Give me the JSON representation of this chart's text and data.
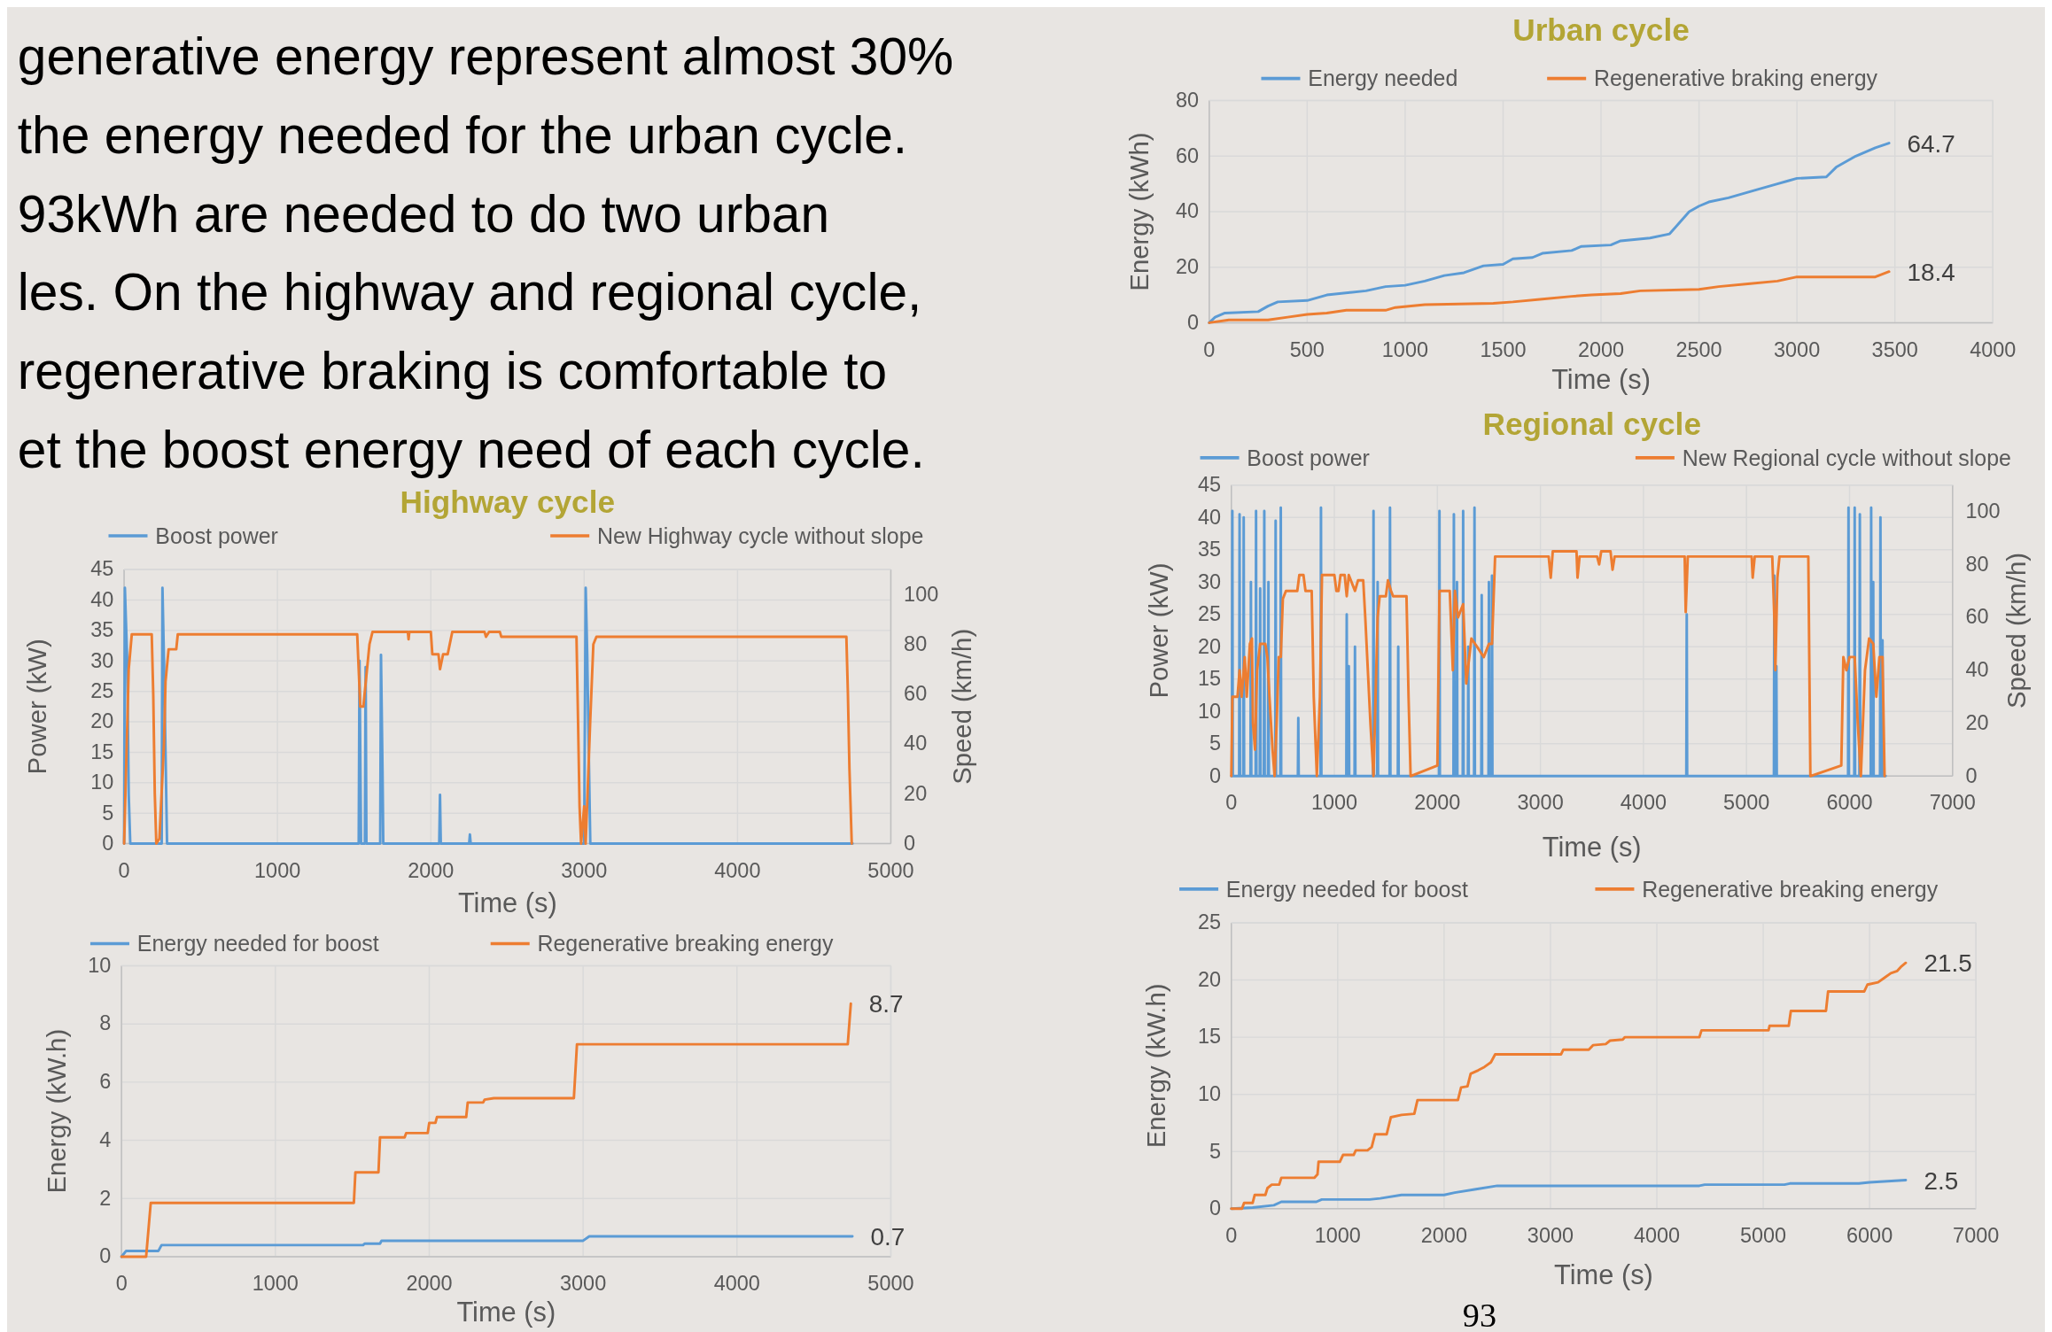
{
  "chart_data": [
    {
      "type": "other",
      "annotations": [
        "generative energy represent almost 30%",
        "the energy needed for the urban cycle.",
        "93kWh are needed to do two urban",
        "les. On the highway and regional cycle,",
        "regenerative braking is comfortable to",
        "et the boost energy need of each cycle."
      ]
    },
    {
      "type": "line",
      "title": "Urban cycle",
      "xlabel": "Time (s)",
      "ylabel": "Energy (kWh)",
      "xlim": [
        0,
        4000
      ],
      "xticks": [
        0,
        500,
        1000,
        1500,
        2000,
        2500,
        3000,
        3500,
        4000
      ],
      "ylim": [
        0,
        80
      ],
      "yticks": [
        0,
        20,
        40,
        60,
        80
      ],
      "grid": true,
      "legend": "top",
      "series": [
        {
          "name": "Energy needed",
          "color": "#5b9bd5",
          "x": [
            0,
            30,
            80,
            250,
            300,
            350,
            500,
            600,
            800,
            900,
            1000,
            1100,
            1200,
            1300,
            1400,
            1500,
            1550,
            1650,
            1700,
            1850,
            1900,
            2050,
            2100,
            2250,
            2350,
            2400,
            2450,
            2500,
            2550,
            2650,
            2800,
            2900,
            2950,
            3000,
            3150,
            3200,
            3300,
            3400,
            3470
          ],
          "values": [
            0,
            2,
            3.5,
            4,
            6,
            7.5,
            8,
            10,
            11.5,
            13,
            13.5,
            15,
            17,
            18,
            20.5,
            21,
            23,
            23.5,
            25,
            26,
            27.5,
            28,
            29.5,
            30.5,
            32,
            36,
            40,
            42,
            43.5,
            45,
            48,
            50,
            51,
            52,
            52.5,
            56,
            60,
            63,
            64.7
          ]
        },
        {
          "name": "Regenerative braking energy",
          "color": "#ed7d31",
          "x": [
            0,
            100,
            300,
            400,
            500,
            600,
            700,
            900,
            950,
            1100,
            1450,
            1550,
            1700,
            1850,
            1950,
            2100,
            2200,
            2500,
            2600,
            2750,
            2900,
            3000,
            3400,
            3470
          ],
          "values": [
            0,
            1,
            1,
            2,
            3,
            3.5,
            4.5,
            4.5,
            5.5,
            6.5,
            7,
            7.5,
            8.5,
            9.5,
            10,
            10.5,
            11.5,
            12,
            13,
            14,
            15,
            16.5,
            16.5,
            18.4
          ]
        }
      ],
      "annotations": [
        {
          "text": "64.7",
          "x": 3470,
          "y": 64.7
        },
        {
          "text": "18.4",
          "x": 3470,
          "y": 18.4
        }
      ]
    },
    {
      "type": "line",
      "title": "Highway cycle",
      "xlabel": "Time (s)",
      "ylabel": "Power (kW)",
      "y2label": "Speed (km/h)",
      "xlim": [
        0,
        5000
      ],
      "xticks": [
        0,
        1000,
        2000,
        3000,
        4000,
        5000
      ],
      "ylim": [
        0,
        45
      ],
      "yticks": [
        0,
        5,
        10,
        15,
        20,
        25,
        30,
        35,
        40,
        45
      ],
      "y2lim": [
        0,
        110
      ],
      "y2ticks": [
        0,
        20,
        40,
        60,
        80,
        100
      ],
      "grid": true,
      "legend": "top",
      "series": [
        {
          "name": "Boost power",
          "color": "#5b9bd5",
          "x": [
            0,
            5,
            20,
            30,
            40,
            245,
            250,
            260,
            270,
            280,
            1530,
            1535,
            1545,
            1570,
            1575,
            1580,
            1670,
            1675,
            1685,
            1690,
            2055,
            2060,
            2065,
            2250,
            2255,
            2260,
            3000,
            3010,
            3020,
            3030,
            3040,
            4750
          ],
          "values": [
            0,
            42,
            30,
            8,
            0,
            0,
            42,
            30,
            15,
            0,
            0,
            30,
            0,
            0,
            29,
            0,
            0,
            31,
            12,
            0,
            0,
            8,
            0,
            0,
            1.5,
            0,
            0,
            42,
            31,
            15,
            0,
            0
          ]
        },
        {
          "name": "New Highway cycle without slope",
          "color": "#ed7d31",
          "axis": "y2",
          "x": [
            0,
            30,
            50,
            180,
            190,
            200,
            210,
            230,
            260,
            270,
            290,
            340,
            350,
            1520,
            1540,
            1560,
            1600,
            1620,
            1850,
            1855,
            1860,
            2000,
            2010,
            2050,
            2060,
            2080,
            2110,
            2140,
            2350,
            2360,
            2380,
            2450,
            2460,
            2950,
            2960,
            2970,
            2980,
            3000,
            3010,
            3040,
            3060,
            3080,
            4710,
            4720,
            4730,
            4745
          ],
          "values": [
            0,
            70,
            84,
            84,
            60,
            20,
            0,
            2,
            40,
            65,
            78,
            78,
            84,
            84,
            55,
            55,
            80,
            85,
            85,
            82,
            85,
            85,
            76,
            76,
            70,
            76,
            76,
            85,
            85,
            83,
            85,
            85,
            83,
            83,
            50,
            15,
            0,
            15,
            0,
            50,
            80,
            83,
            83,
            60,
            30,
            0
          ]
        }
      ]
    },
    {
      "type": "line",
      "xlabel": "Time (s)",
      "ylabel": "Energy (kW.h)",
      "xlim": [
        0,
        5000
      ],
      "xticks": [
        0,
        1000,
        2000,
        3000,
        4000,
        5000
      ],
      "ylim": [
        0,
        10
      ],
      "yticks": [
        0,
        2,
        4,
        6,
        8,
        10
      ],
      "grid": true,
      "legend": "top",
      "series": [
        {
          "name": "Energy needed for boost",
          "color": "#5b9bd5",
          "x": [
            0,
            30,
            240,
            260,
            1570,
            1580,
            1680,
            1690,
            3000,
            3040,
            4750
          ],
          "values": [
            0,
            0.2,
            0.2,
            0.4,
            0.4,
            0.45,
            0.45,
            0.55,
            0.55,
            0.7,
            0.7
          ]
        },
        {
          "name": "Regenerative breaking energy",
          "color": "#ed7d31",
          "x": [
            0,
            160,
            190,
            1510,
            1520,
            1670,
            1680,
            1840,
            1850,
            1990,
            2000,
            2040,
            2050,
            2240,
            2250,
            2350,
            2360,
            2420,
            2940,
            2960,
            4720,
            4740
          ],
          "values": [
            0,
            0,
            1.85,
            1.85,
            2.9,
            2.9,
            4.1,
            4.1,
            4.25,
            4.25,
            4.6,
            4.6,
            4.8,
            4.8,
            5.3,
            5.3,
            5.4,
            5.45,
            5.45,
            7.3,
            7.3,
            8.7
          ]
        }
      ],
      "annotations": [
        {
          "text": "8.7",
          "x": 4740,
          "y": 8.7
        },
        {
          "text": "0.7",
          "x": 4750,
          "y": 0.7
        }
      ]
    },
    {
      "type": "line",
      "title": "Regional cycle",
      "xlabel": "Time (s)",
      "ylabel": "Power (kW)",
      "y2label": "Speed (km/h)",
      "xlim": [
        0,
        7000
      ],
      "xticks": [
        0,
        1000,
        2000,
        3000,
        4000,
        5000,
        6000,
        7000
      ],
      "ylim": [
        0,
        45
      ],
      "yticks": [
        0,
        5,
        10,
        15,
        20,
        25,
        30,
        35,
        40,
        45
      ],
      "y2lim": [
        0,
        110
      ],
      "y2ticks": [
        0,
        20,
        40,
        60,
        80,
        100
      ],
      "grid": true,
      "legend": "top",
      "series": [
        {
          "name": "Boost power",
          "color": "#5b9bd5",
          "x": [
            0,
            6,
            10,
            14,
            76,
            80,
            84,
            116,
            120,
            124,
            186,
            190,
            194,
            236,
            240,
            244,
            276,
            280,
            284,
            316,
            320,
            324,
            356,
            360,
            364,
            426,
            430,
            434,
            476,
            480,
            484,
            646,
            650,
            654,
            866,
            870,
            874,
            1116,
            1120,
            1124,
            1136,
            1140,
            1144,
            1196,
            1200,
            1204,
            1376,
            1380,
            1384,
            1416,
            1420,
            1424,
            1536,
            1540,
            1544,
            1616,
            1620,
            1624,
            2016,
            2020,
            2024,
            2156,
            2160,
            2164,
            2186,
            2190,
            2194,
            2246,
            2250,
            2254,
            2296,
            2300,
            2304,
            2356,
            2360,
            2364,
            2426,
            2430,
            2434,
            2496,
            2500,
            2504,
            2526,
            2530,
            2534,
            4416,
            4420,
            4424,
            5266,
            5270,
            5274,
            5286,
            5290,
            5294,
            5986,
            5990,
            5994,
            6046,
            6050,
            6054,
            6096,
            6100,
            6104,
            6206,
            6210,
            6214,
            6226,
            6230,
            6234,
            6296,
            6300,
            6304,
            6316,
            6320,
            6324,
            6350
          ],
          "values": [
            0,
            0,
            41,
            0,
            0,
            40.5,
            0,
            0,
            40,
            0,
            0,
            30,
            0,
            0,
            41,
            0,
            0,
            29,
            0,
            0,
            41,
            0,
            0,
            30,
            0,
            0,
            39.5,
            0,
            0,
            41.5,
            0,
            0,
            9,
            0,
            0,
            41.5,
            0,
            0,
            25,
            0,
            0,
            17,
            0,
            0,
            20,
            0,
            0,
            41,
            0,
            0,
            30,
            0,
            0,
            41.5,
            0,
            0,
            20,
            0,
            0,
            41,
            0,
            0,
            40.5,
            0,
            0,
            30,
            0,
            0,
            41,
            0,
            0,
            20,
            0,
            0,
            41.5,
            0,
            0,
            28,
            0,
            0,
            30,
            0,
            0,
            31,
            0,
            0,
            25,
            0,
            0,
            31,
            0,
            0,
            17,
            0,
            0,
            41.5,
            0,
            0,
            41.5,
            0,
            0,
            40.5,
            0,
            0,
            41.5,
            0,
            0,
            30,
            0,
            0,
            40,
            0,
            0,
            21,
            0,
            0
          ]
        },
        {
          "name": "New Regional cycle without slope",
          "color": "#ed7d31",
          "axis": "y2",
          "x": [
            0,
            10,
            60,
            80,
            100,
            130,
            150,
            180,
            200,
            210,
            230,
            250,
            280,
            330,
            350,
            370,
            400,
            420,
            440,
            460,
            480,
            500,
            530,
            640,
            660,
            700,
            720,
            780,
            800,
            830,
            860,
            880,
            1000,
            1020,
            1040,
            1060,
            1100,
            1120,
            1140,
            1200,
            1230,
            1280,
            1300,
            1350,
            1380,
            1420,
            1440,
            1500,
            1520,
            1550,
            1570,
            1700,
            1720,
            1740,
            2000,
            2020,
            2120,
            2150,
            2170,
            2200,
            2250,
            2280,
            2330,
            2400,
            2450,
            2500,
            2530,
            2560,
            3080,
            3100,
            3120,
            3350,
            3360,
            3380,
            3550,
            3570,
            3590,
            3680,
            3700,
            3720,
            4400,
            4410,
            4430,
            5050,
            5060,
            5080,
            5250,
            5270,
            5280,
            5300,
            5320,
            5600,
            5620,
            5920,
            5940,
            5970,
            6000,
            6050,
            6080,
            6110,
            6150,
            6190,
            6230,
            6260,
            6290,
            6320,
            6340
          ],
          "values": [
            0,
            30,
            30,
            40,
            30,
            45,
            30,
            50,
            52,
            20,
            10,
            40,
            50,
            50,
            45,
            30,
            10,
            0,
            20,
            45,
            45,
            67,
            70,
            70,
            76,
            76,
            70,
            70,
            30,
            0,
            30,
            76,
            76,
            70,
            70,
            76,
            76,
            68,
            76,
            70,
            74,
            74,
            60,
            20,
            0,
            60,
            68,
            68,
            74,
            70,
            68,
            68,
            30,
            0,
            4,
            70,
            70,
            40,
            70,
            60,
            65,
            35,
            52,
            48,
            45,
            50,
            50,
            83,
            83,
            75,
            85,
            85,
            75,
            83,
            83,
            80,
            85,
            85,
            78,
            83,
            83,
            62,
            83,
            83,
            75,
            83,
            83,
            60,
            40,
            75,
            83,
            83,
            0,
            4,
            45,
            40,
            45,
            45,
            20,
            0,
            40,
            52,
            50,
            30,
            45,
            45,
            0
          ]
        }
      ]
    },
    {
      "type": "line",
      "xlabel": "Time (s)",
      "ylabel": "Energy (kW.h)",
      "xlim": [
        0,
        7000
      ],
      "xticks": [
        0,
        1000,
        2000,
        3000,
        4000,
        5000,
        6000,
        7000
      ],
      "ylim": [
        0,
        25
      ],
      "yticks": [
        0,
        5,
        10,
        15,
        20,
        25
      ],
      "grid": true,
      "legend": "top",
      "series": [
        {
          "name": "Energy needed for boost",
          "color": "#5b9bd5",
          "x": [
            0,
            200,
            400,
            470,
            800,
            850,
            1300,
            1400,
            1600,
            2000,
            2100,
            2300,
            2500,
            4400,
            4450,
            5200,
            5250,
            5900,
            6000,
            6340
          ],
          "values": [
            0,
            0.1,
            0.3,
            0.6,
            0.6,
            0.8,
            0.8,
            0.9,
            1.2,
            1.2,
            1.4,
            1.7,
            2,
            2,
            2.1,
            2.1,
            2.2,
            2.2,
            2.3,
            2.5
          ]
        },
        {
          "name": "Regenerative breaking energy",
          "color": "#ed7d31",
          "x": [
            0,
            100,
            120,
            200,
            220,
            320,
            340,
            380,
            450,
            470,
            780,
            810,
            820,
            1020,
            1050,
            1150,
            1170,
            1280,
            1320,
            1350,
            1460,
            1500,
            1600,
            1720,
            1750,
            2130,
            2160,
            2220,
            2250,
            2320,
            2380,
            2440,
            2480,
            3100,
            3120,
            3360,
            3400,
            3520,
            3560,
            3680,
            3700,
            4400,
            4420,
            5050,
            5060,
            5240,
            5260,
            5590,
            5610,
            5950,
            5980,
            6080,
            6140,
            6200,
            6260,
            6300,
            6340
          ],
          "values": [
            0,
            0,
            0.5,
            0.5,
            1.2,
            1.2,
            1.8,
            2.1,
            2.1,
            2.7,
            2.7,
            3,
            4.1,
            4.1,
            4.7,
            4.7,
            5.1,
            5.1,
            5.4,
            6.5,
            6.5,
            8,
            8.2,
            8.3,
            9.5,
            9.5,
            10.6,
            10.7,
            11.8,
            12.1,
            12.4,
            12.8,
            13.5,
            13.5,
            13.9,
            13.9,
            14.3,
            14.4,
            14.7,
            14.8,
            15,
            15,
            15.6,
            15.6,
            16,
            16,
            17.3,
            17.3,
            19,
            19,
            19.6,
            19.8,
            20.2,
            20.6,
            20.8,
            21.2,
            21.5
          ]
        }
      ],
      "annotations": [
        "93",
        {
          "text": "21.5",
          "x": 6340,
          "y": 21.5
        },
        {
          "text": "2.5",
          "x": 6340,
          "y": 2.5
        }
      ]
    }
  ]
}
